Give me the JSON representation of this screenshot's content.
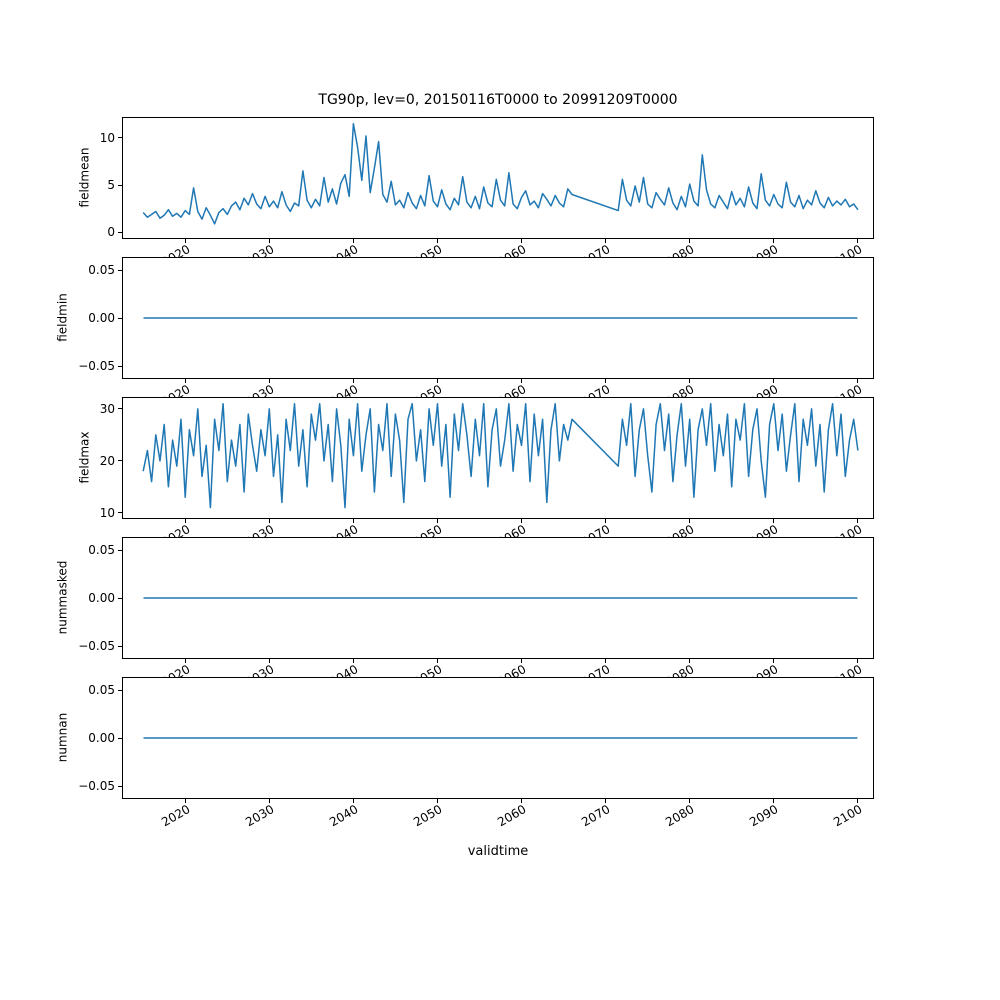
{
  "chart_data": {
    "type": "line",
    "title": "TG90p, lev=0, 20150116T0000 to 20991209T0000",
    "xlabel": "validtime",
    "line_color": "#1f77b4",
    "xlim": [
      2012.6,
      2101.8
    ],
    "xticks": [
      2020,
      2030,
      2040,
      2050,
      2060,
      2070,
      2080,
      2090,
      2100
    ],
    "xtick_labels": [
      "2020",
      "2030",
      "2040",
      "2050",
      "2060",
      "2070",
      "2080",
      "2090",
      "2100"
    ],
    "grid": false,
    "legend": "none",
    "subplots": [
      {
        "ylabel": "fieldmean",
        "ylim": [
          -0.6,
          12.1
        ],
        "yticks": [
          0,
          5,
          10
        ],
        "ytick_labels": [
          "0",
          "5",
          "10"
        ],
        "series": {
          "segments": [
            {
              "x_start": 2015.0,
              "x_step": 0.5,
              "values": [
                2.1,
                1.6,
                1.9,
                2.2,
                1.5,
                1.8,
                2.4,
                1.7,
                2.0,
                1.6,
                2.3,
                1.9,
                4.7,
                2.2,
                1.4,
                2.6,
                1.8,
                0.9,
                2.1,
                2.5,
                1.9,
                2.8,
                3.2,
                2.4,
                3.6,
                2.9,
                4.1,
                3.0,
                2.5,
                3.8,
                2.7,
                3.3,
                2.6,
                4.3,
                2.9,
                2.2,
                3.1,
                2.8,
                6.5,
                3.4,
                2.6,
                3.5,
                2.8,
                5.8,
                3.2,
                4.6,
                3.0,
                5.2,
                6.1,
                3.8,
                11.5,
                9.0,
                5.5,
                10.2,
                4.2,
                6.8,
                9.6,
                4.0,
                3.2,
                5.4,
                2.9,
                3.4,
                2.6,
                4.2,
                3.1,
                2.5,
                3.9,
                2.8,
                6.0,
                3.3,
                2.7,
                4.5,
                3.0,
                2.4,
                3.6,
                2.9,
                5.9,
                3.2,
                2.6,
                3.8,
                2.5,
                4.8,
                3.1,
                2.7,
                5.6,
                3.4,
                2.8,
                6.3,
                3.0,
                2.5,
                3.7,
                4.4,
                2.9,
                3.3,
                2.6,
                4.1,
                3.5,
                2.8,
                3.9,
                3.1,
                2.7,
                4.6,
                4.0
              ]
            },
            {
              "x_start": 2071.5,
              "x_step": 0.5,
              "values": [
                2.3,
                5.6,
                3.4,
                2.8,
                4.9,
                3.2,
                5.8,
                3.0,
                2.6,
                4.2,
                3.5,
                2.9,
                4.7,
                3.1,
                2.4,
                3.8,
                2.7,
                5.1,
                3.3,
                2.8,
                8.2,
                4.5,
                3.0,
                2.6,
                3.9,
                3.2,
                2.5,
                4.3,
                2.9,
                3.6,
                2.7,
                4.8,
                3.1,
                2.5,
                6.2,
                3.4,
                2.8,
                4.0,
                3.0,
                2.6,
                5.3,
                3.2,
                2.7,
                3.9,
                2.5,
                3.4,
                2.9,
                4.4,
                3.1,
                2.6,
                3.7,
                2.8,
                3.3,
                2.9,
                3.5,
                2.7,
                3.0,
                2.4
              ]
            }
          ]
        }
      },
      {
        "ylabel": "fieldmin",
        "ylim": [
          -0.0625,
          0.0625
        ],
        "yticks": [
          -0.05,
          0,
          0.05
        ],
        "ytick_labels": [
          "−0.05",
          "0.00",
          "0.05"
        ],
        "series": {
          "constant": 0,
          "x_range": [
            2015.04,
            2099.94
          ]
        }
      },
      {
        "ylabel": "fieldmax",
        "ylim": [
          9,
          32.1
        ],
        "yticks": [
          10,
          20,
          30
        ],
        "ytick_labels": [
          "10",
          "20",
          "30"
        ],
        "series": {
          "segments": [
            {
              "x_start": 2015.0,
              "x_step": 0.5,
              "values": [
                18,
                22,
                16,
                25,
                20,
                27,
                15,
                24,
                19,
                28,
                13,
                26,
                21,
                30,
                17,
                23,
                11,
                28,
                22,
                31,
                16,
                24,
                19,
                27,
                14,
                29,
                23,
                18,
                26,
                21,
                30,
                17,
                25,
                12,
                28,
                22,
                31,
                19,
                26,
                15,
                29,
                24,
                31,
                20,
                27,
                16,
                30,
                23,
                11,
                28,
                21,
                31,
                18,
                25,
                30,
                14,
                27,
                22,
                31,
                17,
                29,
                24,
                12,
                28,
                31,
                20,
                26,
                16,
                30,
                23,
                31,
                19,
                27,
                13,
                29,
                22,
                31,
                25,
                17,
                28,
                21,
                31,
                15,
                26,
                30,
                19,
                24,
                31,
                18,
                27,
                23,
                31,
                16,
                29,
                21,
                28,
                12,
                26,
                31,
                20,
                27,
                24,
                28
              ]
            },
            {
              "x_start": 2071.5,
              "x_step": 0.5,
              "values": [
                19,
                28,
                23,
                31,
                17,
                26,
                30,
                21,
                14,
                27,
                31,
                22,
                29,
                16,
                25,
                31,
                19,
                28,
                13,
                26,
                30,
                23,
                31,
                18,
                27,
                21,
                29,
                15,
                28,
                24,
                31,
                17,
                26,
                30,
                20,
                13,
                27,
                31,
                22,
                29,
                18,
                25,
                31,
                16,
                28,
                23,
                30,
                19,
                27,
                14,
                26,
                31,
                21,
                29,
                17,
                24,
                28,
                22
              ]
            }
          ]
        }
      },
      {
        "ylabel": "nummasked",
        "ylim": [
          -0.0625,
          0.0625
        ],
        "yticks": [
          -0.05,
          0,
          0.05
        ],
        "ytick_labels": [
          "−0.05",
          "0.00",
          "0.05"
        ],
        "series": {
          "constant": 0,
          "x_range": [
            2015.04,
            2099.94
          ]
        }
      },
      {
        "ylabel": "numnan",
        "ylim": [
          -0.0625,
          0.0625
        ],
        "yticks": [
          -0.05,
          0,
          0.05
        ],
        "ytick_labels": [
          "−0.05",
          "0.00",
          "0.05"
        ],
        "series": {
          "constant": 0,
          "x_range": [
            2015.04,
            2099.94
          ]
        }
      }
    ]
  }
}
